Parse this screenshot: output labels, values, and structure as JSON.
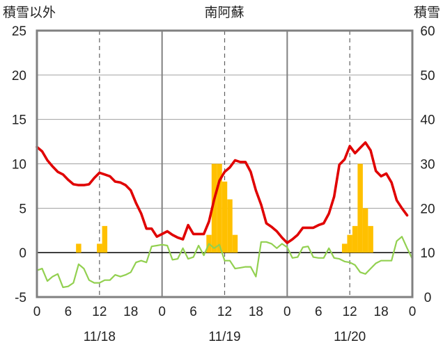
{
  "chart_data": {
    "type": "line",
    "title": "南阿蘇",
    "left_axis_label": "積雪以外",
    "right_axis_label": "積雪",
    "left_ylim": [
      -5,
      25
    ],
    "left_ticks": [
      -5,
      0,
      5,
      10,
      15,
      20,
      25
    ],
    "right_ylim": [
      0,
      60
    ],
    "right_ticks": [
      0,
      10,
      20,
      30,
      40,
      50,
      60
    ],
    "x_range_hours": [
      0,
      72
    ],
    "x_tick_hours": [
      0,
      6,
      12,
      18,
      24,
      30,
      36,
      42,
      48,
      54,
      60,
      66,
      72
    ],
    "x_tick_labels": [
      "0",
      "6",
      "12",
      "18",
      "0",
      "6",
      "12",
      "18",
      "0",
      "6",
      "12",
      "18",
      "0"
    ],
    "date_labels": [
      {
        "text": "11/18",
        "hour": 12
      },
      {
        "text": "11/19",
        "hour": 36
      },
      {
        "text": "11/20",
        "hour": 60
      }
    ],
    "day_boundaries_hours": [
      24,
      48
    ],
    "noon_lines_hours": [
      12,
      36,
      60
    ],
    "grid": true,
    "colors": {
      "temperature": "#e00000",
      "precipitation": "#ffc000",
      "wind": "#92d050",
      "snow": "#7030a0",
      "grid": "#a0a0a0",
      "frame": "#808080"
    },
    "series": [
      {
        "key": "temperature",
        "axis": "left",
        "points": [
          [
            0,
            11.9
          ],
          [
            1,
            11.4
          ],
          [
            2,
            10.4
          ],
          [
            3,
            9.7
          ],
          [
            4,
            9.1
          ],
          [
            5,
            8.8
          ],
          [
            6,
            8.2
          ],
          [
            7,
            7.7
          ],
          [
            8,
            7.6
          ],
          [
            9,
            7.6
          ],
          [
            10,
            7.7
          ],
          [
            11,
            8.4
          ],
          [
            12,
            9.0
          ],
          [
            13,
            8.8
          ],
          [
            14,
            8.6
          ],
          [
            15,
            8.0
          ],
          [
            16,
            7.9
          ],
          [
            17,
            7.6
          ],
          [
            18,
            7.0
          ],
          [
            19,
            5.6
          ],
          [
            20,
            4.4
          ],
          [
            21,
            2.7
          ],
          [
            22,
            2.7
          ],
          [
            23,
            1.8
          ],
          [
            24,
            2.1
          ],
          [
            25,
            2.4
          ],
          [
            26,
            2.0
          ],
          [
            27,
            1.7
          ],
          [
            28,
            1.5
          ],
          [
            29,
            3.1
          ],
          [
            30,
            2.1
          ],
          [
            31,
            2.1
          ],
          [
            32,
            2.1
          ],
          [
            33,
            3.5
          ],
          [
            34,
            6.0
          ],
          [
            35,
            8.1
          ],
          [
            36,
            9.1
          ],
          [
            37,
            9.6
          ],
          [
            38,
            10.4
          ],
          [
            39,
            10.2
          ],
          [
            40,
            10.2
          ],
          [
            41,
            9.1
          ],
          [
            42,
            7.0
          ],
          [
            43,
            5.4
          ],
          [
            44,
            3.3
          ],
          [
            45,
            2.9
          ],
          [
            46,
            2.4
          ],
          [
            47,
            1.7
          ],
          [
            48,
            1.1
          ],
          [
            49,
            1.5
          ],
          [
            50,
            2.0
          ],
          [
            51,
            2.8
          ],
          [
            52,
            2.8
          ],
          [
            53,
            2.8
          ],
          [
            54,
            3.1
          ],
          [
            55,
            3.3
          ],
          [
            56,
            4.4
          ],
          [
            57,
            6.3
          ],
          [
            58,
            9.9
          ],
          [
            59,
            10.5
          ],
          [
            60,
            12.0
          ],
          [
            61,
            11.2
          ],
          [
            62,
            11.8
          ],
          [
            63,
            12.4
          ],
          [
            64,
            11.5
          ],
          [
            65,
            9.2
          ],
          [
            66,
            8.6
          ],
          [
            67,
            8.9
          ],
          [
            68,
            7.9
          ],
          [
            69,
            5.9
          ],
          [
            70,
            5.0
          ],
          [
            71,
            4.2
          ]
        ]
      },
      {
        "key": "wind",
        "axis": "left",
        "points": [
          [
            0,
            -2.0
          ],
          [
            1,
            -1.8
          ],
          [
            2,
            -3.2
          ],
          [
            3,
            -2.7
          ],
          [
            4,
            -2.4
          ],
          [
            5,
            -3.9
          ],
          [
            6,
            -3.8
          ],
          [
            7,
            -3.4
          ],
          [
            8,
            -1.3
          ],
          [
            9,
            -1.8
          ],
          [
            10,
            -3.1
          ],
          [
            11,
            -3.4
          ],
          [
            12,
            -3.4
          ],
          [
            13,
            -3.1
          ],
          [
            14,
            -3.1
          ],
          [
            15,
            -2.5
          ],
          [
            16,
            -2.7
          ],
          [
            17,
            -2.5
          ],
          [
            18,
            -2.2
          ],
          [
            19,
            -1.1
          ],
          [
            20,
            -0.9
          ],
          [
            21,
            -1.1
          ],
          [
            22,
            0.7
          ],
          [
            23,
            0.8
          ],
          [
            24,
            0.9
          ],
          [
            25,
            0.8
          ],
          [
            26,
            -0.8
          ],
          [
            27,
            -0.7
          ],
          [
            28,
            0.5
          ],
          [
            29,
            -0.7
          ],
          [
            30,
            -0.5
          ],
          [
            31,
            0.8
          ],
          [
            32,
            -0.3
          ],
          [
            33,
            1.0
          ],
          [
            34,
            0.5
          ],
          [
            35,
            0.9
          ],
          [
            36,
            -0.9
          ],
          [
            37,
            -0.9
          ],
          [
            38,
            -1.8
          ],
          [
            39,
            -1.7
          ],
          [
            40,
            -1.6
          ],
          [
            41,
            -1.6
          ],
          [
            42,
            -2.7
          ],
          [
            43,
            1.2
          ],
          [
            44,
            1.2
          ],
          [
            45,
            1.0
          ],
          [
            46,
            0.5
          ],
          [
            47,
            1.0
          ],
          [
            48,
            0.6
          ],
          [
            49,
            -0.6
          ],
          [
            50,
            -0.5
          ],
          [
            51,
            0.6
          ],
          [
            52,
            0.7
          ],
          [
            53,
            -0.5
          ],
          [
            54,
            -0.6
          ],
          [
            55,
            -0.6
          ],
          [
            56,
            0.5
          ],
          [
            57,
            -0.6
          ],
          [
            58,
            -0.7
          ],
          [
            59,
            -1.0
          ],
          [
            60,
            -1.1
          ],
          [
            61,
            -1.4
          ],
          [
            62,
            -2.2
          ],
          [
            63,
            -2.4
          ],
          [
            64,
            -1.8
          ],
          [
            65,
            -1.2
          ],
          [
            66,
            -0.9
          ],
          [
            67,
            -0.9
          ],
          [
            68,
            -0.9
          ],
          [
            69,
            1.3
          ],
          [
            70,
            1.8
          ],
          [
            71,
            0.5
          ],
          [
            72,
            -0.7
          ]
        ]
      },
      {
        "key": "precipitation",
        "axis": "left",
        "bars": [
          [
            8,
            1.0
          ],
          [
            12,
            1.0
          ],
          [
            13,
            3.0
          ],
          [
            33,
            2.0
          ],
          [
            34,
            10.0
          ],
          [
            35,
            10.0
          ],
          [
            36,
            8.0
          ],
          [
            37,
            6.0
          ],
          [
            38,
            2.0
          ],
          [
            59,
            1.0
          ],
          [
            60,
            2.0
          ],
          [
            61,
            3.0
          ],
          [
            62,
            10.0
          ],
          [
            63,
            5.0
          ],
          [
            64,
            3.0
          ]
        ]
      },
      {
        "key": "snow",
        "axis": "right",
        "points": [
          [
            0,
            0
          ],
          [
            72,
            0
          ]
        ]
      }
    ]
  }
}
